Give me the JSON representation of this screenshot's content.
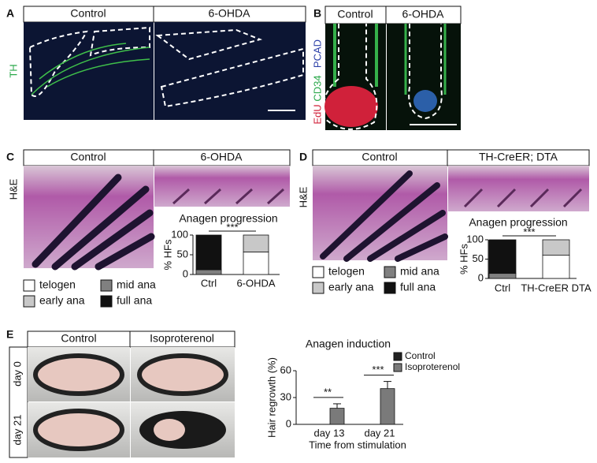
{
  "panels": [
    {
      "label": "A",
      "headers": [
        "Control",
        "6-OHDA"
      ],
      "stain": [
        "TH"
      ]
    },
    {
      "label": "B",
      "headers": [
        "Control",
        "6-OHDA"
      ],
      "stain": [
        "EdU",
        "CD34",
        "PCAD"
      ]
    },
    {
      "label": "C",
      "headers": [
        "Control",
        "6-OHDA"
      ],
      "stain": [
        "H&E"
      ],
      "chart": {
        "type": "stacked_bar",
        "title": "Anagen progression",
        "y_label": "% HFs",
        "categories": [
          "Ctrl",
          "6-OHDA"
        ],
        "series": [
          {
            "name": "telogen",
            "color": "#ffffff",
            "values": [
              0,
              57
            ]
          },
          {
            "name": "early ana",
            "color": "#c8c8c8",
            "values": [
              0,
              43
            ]
          },
          {
            "name": "mid ana",
            "color": "#808080",
            "values": [
              12,
              0
            ]
          },
          {
            "name": "full ana",
            "color": "#111111",
            "values": [
              88,
              0
            ]
          }
        ],
        "ylim": [
          0,
          100
        ],
        "yticks": [
          0,
          50,
          100
        ],
        "significance": "***"
      }
    },
    {
      "label": "D",
      "headers": [
        "Control",
        "TH-CreER; DTA"
      ],
      "stain": [
        "H&E"
      ],
      "chart": {
        "type": "stacked_bar",
        "title": "Anagen progression",
        "y_label": "% HFs",
        "categories": [
          "Ctrl",
          "TH-CreER DTA"
        ],
        "series": [
          {
            "name": "telogen",
            "color": "#ffffff",
            "values": [
              0,
              60
            ]
          },
          {
            "name": "early ana",
            "color": "#c8c8c8",
            "values": [
              0,
              40
            ]
          },
          {
            "name": "mid ana",
            "color": "#808080",
            "values": [
              13,
              0
            ]
          },
          {
            "name": "full ana",
            "color": "#111111",
            "values": [
              87,
              0
            ]
          }
        ],
        "ylim": [
          0,
          100
        ],
        "yticks": [
          0,
          50,
          100
        ],
        "significance": "***"
      }
    },
    {
      "label": "E",
      "headers": [
        "Control",
        "Isoproterenol"
      ],
      "rows": [
        "day 0",
        "day 21"
      ],
      "chart": {
        "type": "bar",
        "title": "Anagen induction",
        "y_label": "Hair regrowth (%)",
        "x_label": "Time from stimulation",
        "categories": [
          "day 13",
          "day 21"
        ],
        "series": [
          {
            "name": "Control",
            "color": "#222222",
            "values": [
              0,
              0
            ]
          },
          {
            "name": "Isoproterenol",
            "color": "#7a7a7a",
            "values": [
              18,
              40
            ],
            "errors": [
              5,
              8
            ]
          }
        ],
        "ylim": [
          0,
          60
        ],
        "yticks": [
          0,
          30,
          60
        ],
        "significance": [
          "**",
          "***"
        ]
      }
    }
  ]
}
